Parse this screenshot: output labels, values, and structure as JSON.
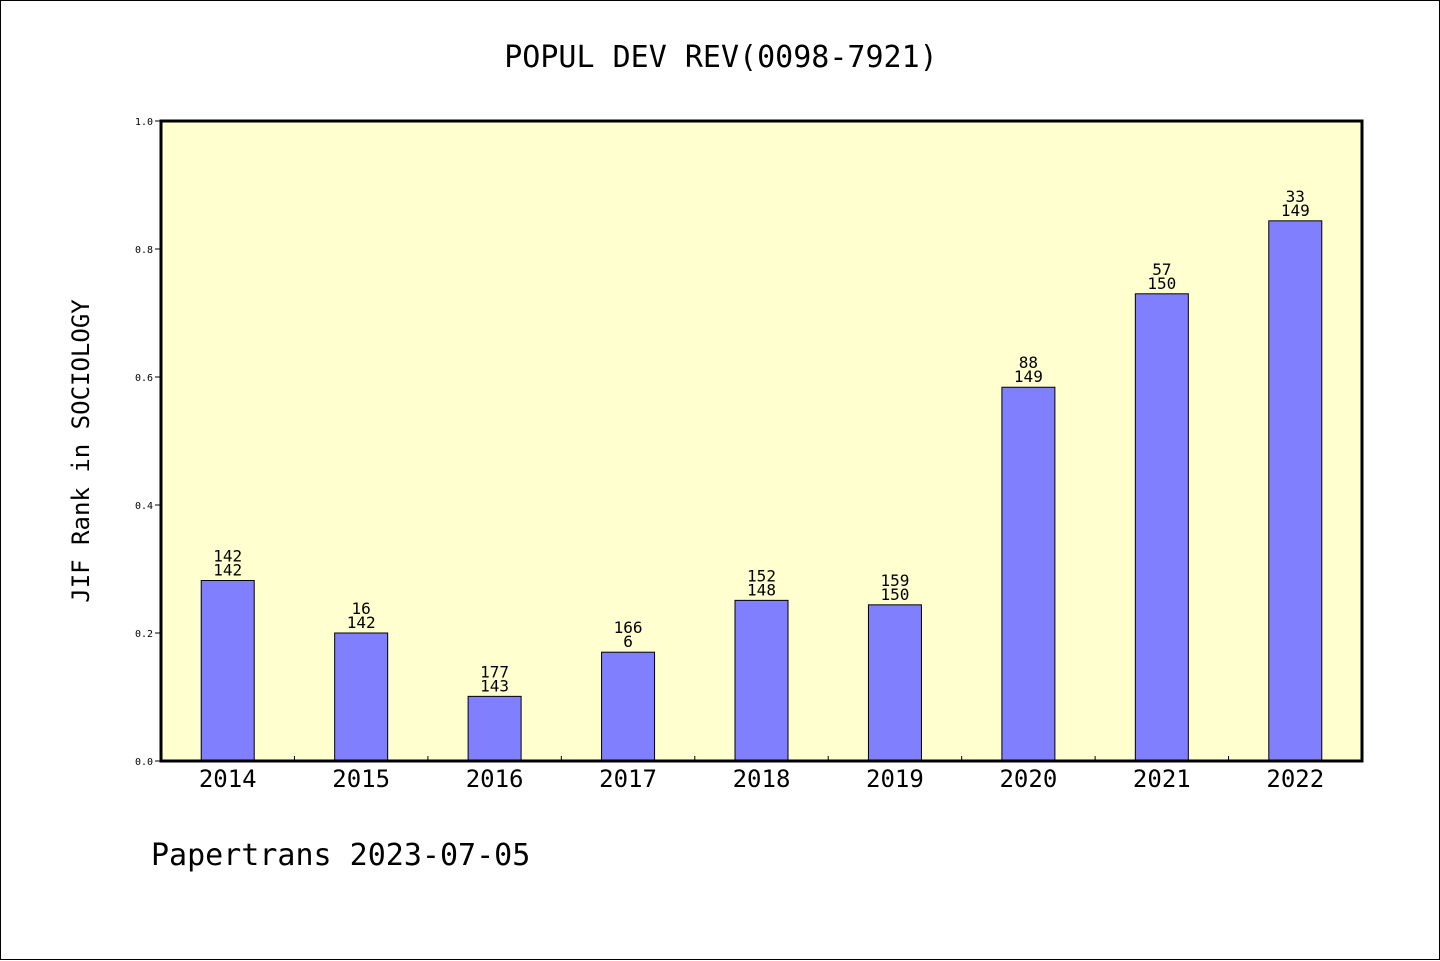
{
  "chart_data": {
    "type": "bar",
    "title": "POPUL DEV REV(0098-7921)",
    "xlabel": "",
    "ylabel": "JIF Rank in SOCIOLOGY",
    "ylim": [
      0,
      1.0
    ],
    "yticks": [
      "0.0",
      "0.2",
      "0.4",
      "0.6",
      "0.8",
      "1.0"
    ],
    "categories": [
      "2014",
      "2015",
      "2016",
      "2017",
      "2018",
      "2019",
      "2020",
      "2021",
      "2022"
    ],
    "values": [
      0.282,
      0.2,
      0.101,
      0.17,
      0.251,
      0.244,
      0.584,
      0.73,
      0.844
    ],
    "annotations": [
      {
        "top": "142",
        "bottom": "142"
      },
      {
        "top": "16",
        "bottom": "142"
      },
      {
        "top": "177",
        "bottom": "143"
      },
      {
        "top": "166",
        "bottom": "6"
      },
      {
        "top": "152",
        "bottom": "148"
      },
      {
        "top": "159",
        "bottom": "150"
      },
      {
        "top": "88",
        "bottom": "149"
      },
      {
        "top": "57",
        "bottom": "150"
      },
      {
        "top": "33",
        "bottom": "149"
      }
    ],
    "grid": false,
    "bar_color": "#8080ff",
    "plot_background": "#ffffd0"
  },
  "footer": "Papertrans 2023-07-05"
}
